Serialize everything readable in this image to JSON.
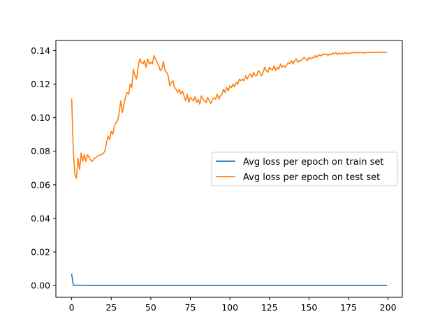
{
  "chart_data": {
    "type": "line",
    "title": "",
    "xlabel": "",
    "ylabel": "",
    "xlim": [
      -10,
      209
    ],
    "ylim": [
      -0.007,
      0.146
    ],
    "grid": false,
    "legend_position": "center-right",
    "x_ticks": [
      0,
      25,
      50,
      75,
      100,
      125,
      150,
      175,
      200
    ],
    "x_tick_labels": [
      "0",
      "25",
      "50",
      "75",
      "100",
      "125",
      "150",
      "175",
      "200"
    ],
    "y_ticks": [
      0.0,
      0.02,
      0.04,
      0.06,
      0.08,
      0.1,
      0.12,
      0.14
    ],
    "y_tick_labels": [
      "0.00",
      "0.02",
      "0.04",
      "0.06",
      "0.08",
      "0.10",
      "0.12",
      "0.14"
    ],
    "series": [
      {
        "name": "Avg loss per epoch on train set",
        "color": "#1f77b4",
        "x": [
          0,
          1,
          2,
          5,
          10,
          20,
          50,
          100,
          150,
          199
        ],
        "y": [
          0.0068,
          0.0003,
          0.0002,
          0.0002,
          0.0001,
          0.0001,
          0.0001,
          0.0001,
          0.0001,
          0.0001
        ]
      },
      {
        "name": "Avg loss per epoch on test set",
        "color": "#ff7f0e",
        "x": [
          0,
          1,
          2,
          3,
          4,
          5,
          6,
          7,
          8,
          9,
          10,
          11,
          12,
          13,
          14,
          15,
          16,
          17,
          18,
          19,
          20,
          21,
          22,
          23,
          24,
          25,
          26,
          27,
          28,
          29,
          30,
          31,
          32,
          33,
          34,
          35,
          36,
          37,
          38,
          39,
          40,
          41,
          42,
          43,
          44,
          45,
          46,
          47,
          48,
          49,
          50,
          51,
          52,
          53,
          54,
          55,
          56,
          57,
          58,
          59,
          60,
          61,
          62,
          63,
          64,
          65,
          66,
          67,
          68,
          69,
          70,
          71,
          72,
          73,
          74,
          75,
          76,
          77,
          78,
          79,
          80,
          81,
          82,
          83,
          84,
          85,
          86,
          87,
          88,
          89,
          90,
          91,
          92,
          93,
          94,
          95,
          96,
          97,
          98,
          99,
          100,
          101,
          102,
          103,
          104,
          105,
          106,
          107,
          108,
          109,
          110,
          111,
          112,
          113,
          114,
          115,
          116,
          117,
          118,
          119,
          120,
          121,
          122,
          123,
          124,
          125,
          126,
          127,
          128,
          129,
          130,
          131,
          132,
          133,
          134,
          135,
          136,
          137,
          138,
          139,
          140,
          141,
          142,
          143,
          144,
          145,
          146,
          147,
          148,
          149,
          150,
          151,
          152,
          153,
          154,
          155,
          156,
          157,
          158,
          159,
          160,
          161,
          162,
          163,
          164,
          165,
          166,
          167,
          168,
          169,
          170,
          171,
          172,
          173,
          174,
          175,
          176,
          177,
          178,
          179,
          180,
          181,
          182,
          183,
          184,
          185,
          186,
          187,
          188,
          189,
          190,
          191,
          192,
          193,
          194,
          195,
          196,
          197,
          198,
          199
        ],
        "y": [
          0.111,
          0.081,
          0.066,
          0.064,
          0.076,
          0.069,
          0.079,
          0.074,
          0.078,
          0.074,
          0.078,
          0.0765,
          0.0745,
          0.074,
          0.0755,
          0.076,
          0.077,
          0.0775,
          0.078,
          0.078,
          0.079,
          0.08,
          0.085,
          0.089,
          0.087,
          0.092,
          0.09,
          0.095,
          0.097,
          0.098,
          0.103,
          0.11,
          0.103,
          0.108,
          0.112,
          0.115,
          0.114,
          0.12,
          0.118,
          0.129,
          0.125,
          0.123,
          0.13,
          0.135,
          0.133,
          0.132,
          0.134,
          0.13,
          0.135,
          0.132,
          0.133,
          0.132,
          0.137,
          0.135,
          0.133,
          0.131,
          0.128,
          0.129,
          0.1335,
          0.128,
          0.127,
          0.125,
          0.119,
          0.121,
          0.122,
          0.118,
          0.117,
          0.115,
          0.117,
          0.114,
          0.116,
          0.113,
          0.11,
          0.114,
          0.109,
          0.112,
          0.111,
          0.11,
          0.1125,
          0.109,
          0.111,
          0.108,
          0.113,
          0.111,
          0.11,
          0.109,
          0.112,
          0.11,
          0.1085,
          0.111,
          0.112,
          0.111,
          0.114,
          0.111,
          0.113,
          0.114,
          0.117,
          0.115,
          0.118,
          0.116,
          0.119,
          0.118,
          0.12,
          0.1185,
          0.121,
          0.12,
          0.123,
          0.122,
          0.123,
          0.122,
          0.125,
          0.123,
          0.125,
          0.126,
          0.124,
          0.127,
          0.125,
          0.125,
          0.128,
          0.127,
          0.125,
          0.127,
          0.13,
          0.128,
          0.127,
          0.13,
          0.129,
          0.1285,
          0.131,
          0.128,
          0.13,
          0.129,
          0.132,
          0.13,
          0.131,
          0.13,
          0.1315,
          0.133,
          0.132,
          0.134,
          0.132,
          0.134,
          0.135,
          0.133,
          0.134,
          0.134,
          0.135,
          0.136,
          0.135,
          0.134,
          0.136,
          0.135,
          0.136,
          0.1355,
          0.137,
          0.136,
          0.1375,
          0.137,
          0.137,
          0.138,
          0.1375,
          0.138,
          0.137,
          0.138,
          0.1375,
          0.1385,
          0.138,
          0.139,
          0.1375,
          0.1385,
          0.138,
          0.1385,
          0.138,
          0.139,
          0.138,
          0.1385,
          0.1385,
          0.1385,
          0.139,
          0.1385,
          0.139,
          0.1385,
          0.139,
          0.139,
          0.1385,
          0.139,
          0.1385,
          0.139,
          0.1388,
          0.139,
          0.1388,
          0.139,
          0.1388,
          0.139,
          0.139,
          0.1389,
          0.139,
          0.139,
          0.139,
          0.139
        ]
      }
    ]
  }
}
